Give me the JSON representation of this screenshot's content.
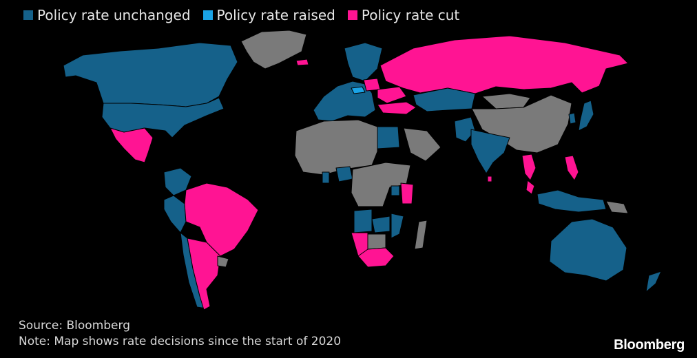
{
  "colors": {
    "unchanged": "#15618a",
    "raised": "#1aa3e6",
    "cut": "#ff1493",
    "no_data": "#7a7a7a",
    "background": "#000000",
    "border": "#000000"
  },
  "legend": [
    {
      "key": "unchanged",
      "label": "Policy rate unchanged"
    },
    {
      "key": "raised",
      "label": "Policy rate raised"
    },
    {
      "key": "cut",
      "label": "Policy rate cut"
    }
  ],
  "footer": {
    "source": "Source: Bloomberg",
    "note": "Note: Map shows rate decisions since the start of 2020"
  },
  "brand": "Bloomberg",
  "map_regions": [
    {
      "region": "Canada",
      "status": "unchanged"
    },
    {
      "region": "United States",
      "status": "unchanged"
    },
    {
      "region": "Mexico",
      "status": "cut"
    },
    {
      "region": "Brazil",
      "status": "cut"
    },
    {
      "region": "Argentina",
      "status": "cut"
    },
    {
      "region": "Chile",
      "status": "unchanged"
    },
    {
      "region": "Peru",
      "status": "unchanged"
    },
    {
      "region": "Colombia",
      "status": "unchanged"
    },
    {
      "region": "Uruguay",
      "status": "no_data"
    },
    {
      "region": "Greenland",
      "status": "no_data"
    },
    {
      "region": "Iceland",
      "status": "cut"
    },
    {
      "region": "Western Europe",
      "status": "unchanged"
    },
    {
      "region": "Scandinavia",
      "status": "unchanged"
    },
    {
      "region": "Czech Republic",
      "status": "raised"
    },
    {
      "region": "Poland",
      "status": "cut"
    },
    {
      "region": "Ukraine",
      "status": "cut"
    },
    {
      "region": "Turkey",
      "status": "cut"
    },
    {
      "region": "Russia",
      "status": "cut"
    },
    {
      "region": "Kazakhstan",
      "status": "unchanged"
    },
    {
      "region": "China",
      "status": "no_data"
    },
    {
      "region": "Mongolia",
      "status": "no_data"
    },
    {
      "region": "Japan",
      "status": "unchanged"
    },
    {
      "region": "South Korea",
      "status": "unchanged"
    },
    {
      "region": "Pakistan",
      "status": "unchanged"
    },
    {
      "region": "India",
      "status": "unchanged"
    },
    {
      "region": "Sri Lanka",
      "status": "cut"
    },
    {
      "region": "Thailand",
      "status": "cut"
    },
    {
      "region": "Malaysia",
      "status": "cut"
    },
    {
      "region": "Philippines",
      "status": "cut"
    },
    {
      "region": "Indonesia",
      "status": "unchanged"
    },
    {
      "region": "Papua New Guinea",
      "status": "no_data"
    },
    {
      "region": "Australia",
      "status": "unchanged"
    },
    {
      "region": "New Zealand",
      "status": "unchanged"
    },
    {
      "region": "North Africa",
      "status": "no_data"
    },
    {
      "region": "Egypt",
      "status": "unchanged"
    },
    {
      "region": "Saudi Arabia",
      "status": "no_data"
    },
    {
      "region": "Nigeria",
      "status": "unchanged"
    },
    {
      "region": "Ghana",
      "status": "unchanged"
    },
    {
      "region": "Kenya",
      "status": "cut"
    },
    {
      "region": "Uganda",
      "status": "unchanged"
    },
    {
      "region": "Angola",
      "status": "unchanged"
    },
    {
      "region": "Zambia",
      "status": "unchanged"
    },
    {
      "region": "Mozambique",
      "status": "unchanged"
    },
    {
      "region": "Namibia",
      "status": "cut"
    },
    {
      "region": "Botswana",
      "status": "no_data"
    },
    {
      "region": "South Africa",
      "status": "cut"
    },
    {
      "region": "Madagascar",
      "status": "no_data"
    }
  ]
}
